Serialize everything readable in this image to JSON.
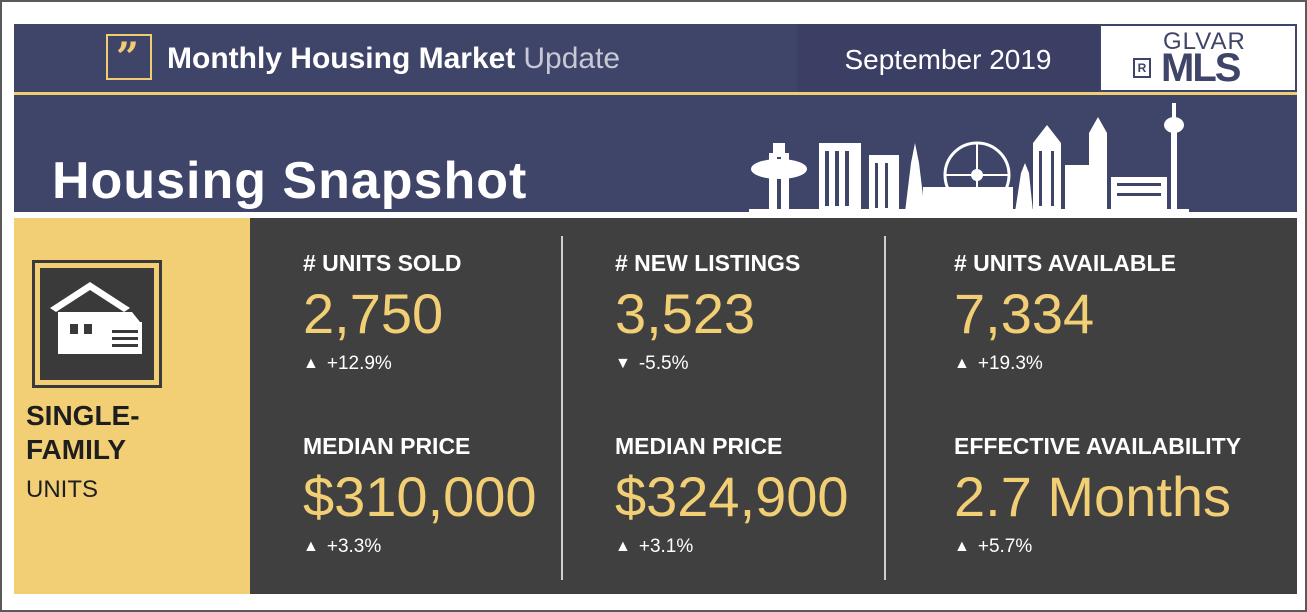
{
  "header": {
    "title_bold": "Monthly Housing Market",
    "title_light": "Update",
    "date": "September 2019",
    "logo_top": "GLVAR",
    "logo_main": "MLS",
    "logo_r": "R"
  },
  "banner": {
    "title": "Housing Snapshot"
  },
  "category": {
    "line1": "SINGLE-",
    "line2": "FAMILY",
    "line3": "UNITS"
  },
  "stats": [
    {
      "label": "# UNITS SOLD",
      "value": "2,750",
      "direction": "up",
      "arrow": "▲",
      "change": "+12.9%"
    },
    {
      "label": "# NEW LISTINGS",
      "value": "3,523",
      "direction": "down",
      "arrow": "▼",
      "change": "-5.5%"
    },
    {
      "label": "# UNITS AVAILABLE",
      "value": "7,334",
      "direction": "up",
      "arrow": "▲",
      "change": "+19.3%"
    },
    {
      "label": "MEDIAN PRICE",
      "value": "$310,000",
      "direction": "up",
      "arrow": "▲",
      "change": "+3.3%"
    },
    {
      "label": "MEDIAN PRICE",
      "value": "$324,900",
      "direction": "up",
      "arrow": "▲",
      "change": "+3.1%"
    },
    {
      "label": "EFFECTIVE AVAILABILITY",
      "value": "2.7 Months",
      "direction": "up",
      "arrow": "▲",
      "change": "+5.7%"
    }
  ],
  "colors": {
    "navy": "#3f4469",
    "gold": "#f2cf75",
    "panel": "#404040"
  },
  "icons": {
    "quote": "quote-icon",
    "house": "house-icon",
    "skyline": "skyline-icon"
  }
}
